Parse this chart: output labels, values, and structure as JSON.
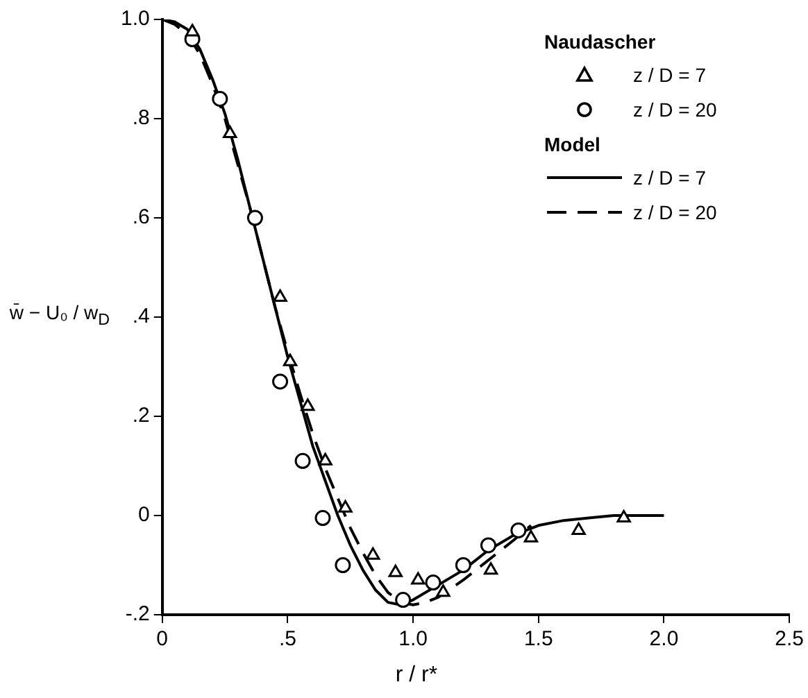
{
  "chart_data": {
    "type": "line",
    "xlabel": "r / r*",
    "ylabel": "w̄ − U₀ / w$_{D}$",
    "legend": "top right",
    "annotations": [
      "Naudascher",
      "Model"
    ],
    "xlim": [
      0,
      2.5
    ],
    "xticks": [
      0,
      {
        "value": 0.5,
        "label": ".5"
      },
      {
        "value": 1,
        "label": "1.0"
      },
      1.5,
      {
        "value": 2,
        "label": "2.0"
      },
      2.5
    ],
    "ylim": [
      -0.2,
      1
    ],
    "yticks": [
      {
        "value": -0.2,
        "label": "-.2"
      },
      0,
      {
        "value": 0.2,
        "label": ".2"
      },
      {
        "value": 0.4,
        "label": ".4"
      },
      {
        "value": 0.6,
        "label": ".6"
      },
      {
        "value": 0.8,
        "label": ".8"
      },
      {
        "value": 1,
        "label": "1.0"
      }
    ],
    "series": [
      {
        "name": "z / D = 7",
        "type": "scatter",
        "marker": "triangle",
        "color": "#000000",
        "x": [
          0.12,
          0.27,
          0.47,
          0.51,
          0.58,
          0.65,
          0.73,
          0.84,
          0.93,
          1.02,
          1.12,
          1.31,
          1.47,
          1.66,
          1.84
        ],
        "values": [
          0.975,
          0.77,
          0.44,
          0.31,
          0.22,
          0.11,
          0.015,
          -0.08,
          -0.115,
          -0.13,
          -0.155,
          -0.11,
          -0.045,
          -0.03,
          -0.005
        ]
      },
      {
        "name": "z / D = 20",
        "type": "scatter",
        "marker": "circle",
        "color": "#000000",
        "x": [
          0.12,
          0.23,
          0.37,
          0.47,
          0.56,
          0.64,
          0.72,
          0.96,
          1.08,
          1.2,
          1.3,
          1.42
        ],
        "values": [
          0.96,
          0.84,
          0.6,
          0.27,
          0.11,
          -0.005,
          -0.1,
          -0.17,
          -0.135,
          -0.1,
          -0.06,
          -0.03
        ]
      },
      {
        "name": "z / D = 7",
        "type": "line",
        "line_style": "solid",
        "marker": "none",
        "color": "#000000",
        "x": [
          0,
          0.05,
          0.1,
          0.15,
          0.2,
          0.25,
          0.3,
          0.35,
          0.4,
          0.45,
          0.5,
          0.55,
          0.6,
          0.65,
          0.7,
          0.75,
          0.8,
          0.85,
          0.9,
          0.95,
          1,
          1.1,
          1.2,
          1.3,
          1.4,
          1.5,
          1.6,
          1.7,
          1.8,
          1.9,
          2
        ],
        "values": [
          1,
          0.995,
          0.98,
          0.94,
          0.88,
          0.81,
          0.72,
          0.62,
          0.52,
          0.42,
          0.32,
          0.23,
          0.14,
          0.07,
          0,
          -0.06,
          -0.11,
          -0.15,
          -0.175,
          -0.18,
          -0.17,
          -0.14,
          -0.11,
          -0.07,
          -0.04,
          -0.02,
          -0.01,
          -0.005,
          0,
          0,
          0
        ]
      },
      {
        "name": "z / D = 20",
        "type": "line",
        "line_style": "dashed",
        "marker": "none",
        "color": "#000000",
        "x": [
          0,
          0.05,
          0.1,
          0.15,
          0.2,
          0.25,
          0.3,
          0.35,
          0.4,
          0.45,
          0.5,
          0.55,
          0.6,
          0.65,
          0.7,
          0.75,
          0.8,
          0.85,
          0.9,
          0.95,
          1,
          1.05,
          1.1,
          1.2,
          1.3,
          1.4,
          1.47
        ],
        "values": [
          1,
          0.99,
          0.97,
          0.93,
          0.87,
          0.8,
          0.71,
          0.62,
          0.52,
          0.42,
          0.33,
          0.245,
          0.165,
          0.095,
          0.035,
          -0.025,
          -0.075,
          -0.12,
          -0.155,
          -0.175,
          -0.18,
          -0.175,
          -0.165,
          -0.13,
          -0.09,
          -0.05,
          -0.02
        ]
      }
    ]
  }
}
